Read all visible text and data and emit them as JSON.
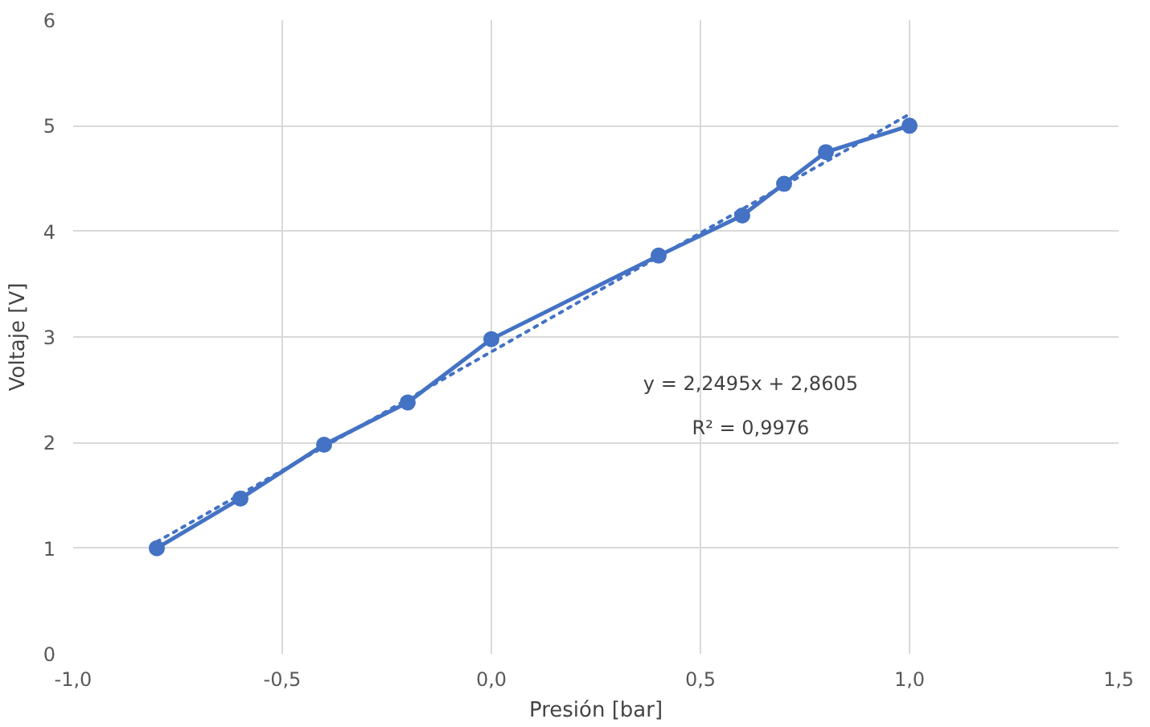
{
  "chart_data": {
    "type": "line",
    "xlabel": "Presión [bar]",
    "ylabel": "Voltaje [V]",
    "xlim": [
      -1.0,
      1.5
    ],
    "ylim": [
      0,
      6
    ],
    "xticks": [
      {
        "value": -1.0,
        "label": "-1,0"
      },
      {
        "value": -0.5,
        "label": "-0,5"
      },
      {
        "value": 0.0,
        "label": "0,0"
      },
      {
        "value": 0.5,
        "label": "0,5"
      },
      {
        "value": 1.0,
        "label": "1,0"
      },
      {
        "value": 1.5,
        "label": "1,5"
      }
    ],
    "yticks": [
      0,
      1,
      2,
      3,
      4,
      5,
      6
    ],
    "grid": true,
    "marker": "circle",
    "line_style": "solid",
    "series": [
      {
        "color": "#4472c4",
        "x": [
          -0.8,
          -0.6,
          -0.4,
          -0.2,
          0.0,
          0.4,
          0.6,
          0.7,
          0.8,
          1.0
        ],
        "values": [
          1.0,
          1.47,
          1.98,
          2.38,
          2.98,
          3.77,
          4.15,
          4.45,
          4.75,
          5.0
        ]
      },
      {
        "color": "#4472c4",
        "x": [
          -0.8,
          1.0
        ],
        "values": [
          1.06,
          5.11
        ],
        "marker": "none",
        "line_style": "dotted"
      }
    ],
    "annotations": [
      "y = 2,2495x + 2,8605",
      "R² = 0,9976"
    ]
  }
}
